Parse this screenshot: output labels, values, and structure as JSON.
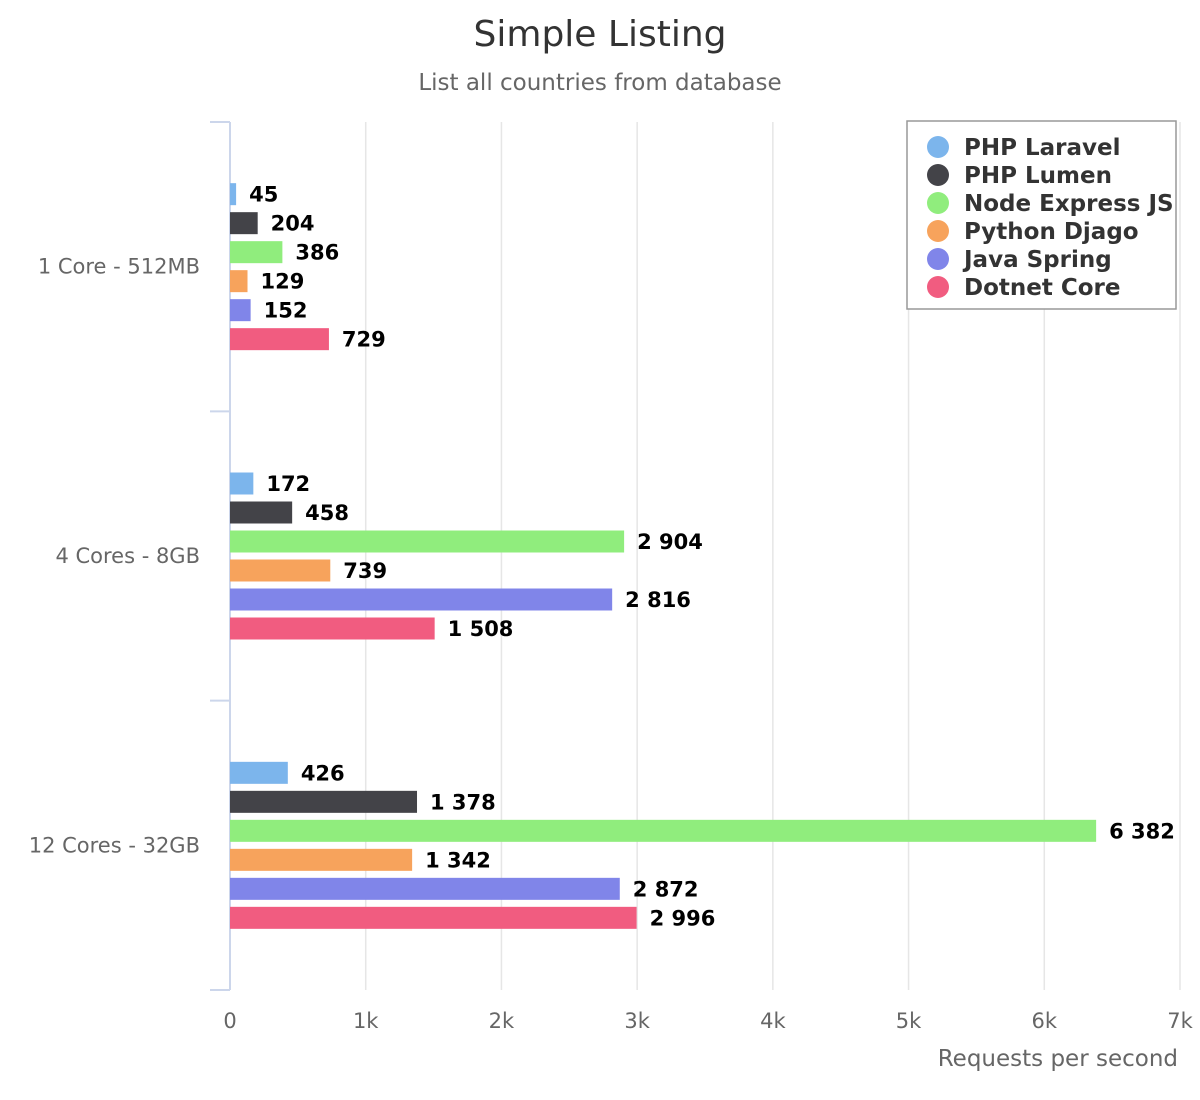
{
  "chart_data": {
    "type": "bar",
    "orientation": "horizontal",
    "title": "Simple Listing",
    "subtitle": "List all countries from database",
    "xlabel": "Requests per second",
    "ylabel": "",
    "xlim": [
      0,
      7000
    ],
    "ticks": [
      "0",
      "1k",
      "2k",
      "3k",
      "4k",
      "5k",
      "6k",
      "7k"
    ],
    "grid": true,
    "legend_position": "top-right",
    "categories": [
      "1 Core - 512MB",
      "4 Cores - 8GB",
      "12 Cores - 32GB"
    ],
    "series": [
      {
        "name": "PHP Laravel",
        "color": "#7cb5ec",
        "values": [
          45,
          172,
          426
        ],
        "labels": [
          "45",
          "172",
          "426"
        ]
      },
      {
        "name": "PHP Lumen",
        "color": "#434348",
        "values": [
          204,
          458,
          1378
        ],
        "labels": [
          "204",
          "458",
          "1 378"
        ]
      },
      {
        "name": "Node Express JS",
        "color": "#90ed7d",
        "values": [
          386,
          2904,
          6382
        ],
        "labels": [
          "386",
          "2 904",
          "6 382"
        ]
      },
      {
        "name": "Python Djago",
        "color": "#f7a35c",
        "values": [
          129,
          739,
          1342
        ],
        "labels": [
          "129",
          "739",
          "1 342"
        ]
      },
      {
        "name": "Java Spring",
        "color": "#8085e9",
        "values": [
          152,
          2816,
          2872
        ],
        "labels": [
          "152",
          "2 816",
          "2 872"
        ]
      },
      {
        "name": "Dotnet Core",
        "color": "#f15c80",
        "values": [
          729,
          1508,
          2996
        ],
        "labels": [
          "729",
          "1 508",
          "2 996"
        ]
      }
    ]
  }
}
